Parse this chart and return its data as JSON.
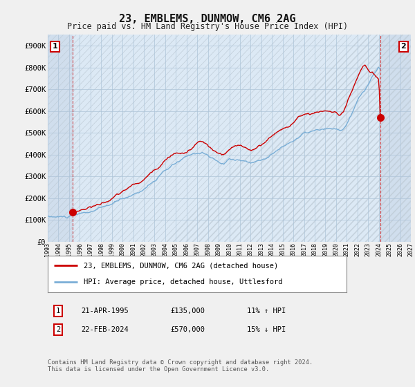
{
  "title": "23, EMBLEMS, DUNMOW, CM6 2AG",
  "subtitle": "Price paid vs. HM Land Registry's House Price Index (HPI)",
  "xlim_start": 1993.0,
  "xlim_end": 2027.0,
  "ylim": [
    0,
    950000
  ],
  "yticks": [
    0,
    100000,
    200000,
    300000,
    400000,
    500000,
    600000,
    700000,
    800000,
    900000
  ],
  "ytick_labels": [
    "£0",
    "£100K",
    "£200K",
    "£300K",
    "£400K",
    "£500K",
    "£600K",
    "£700K",
    "£800K",
    "£900K"
  ],
  "xtick_years": [
    1993,
    1994,
    1995,
    1996,
    1997,
    1998,
    1999,
    2000,
    2001,
    2002,
    2003,
    2004,
    2005,
    2006,
    2007,
    2008,
    2009,
    2010,
    2011,
    2012,
    2013,
    2014,
    2015,
    2016,
    2017,
    2018,
    2019,
    2020,
    2021,
    2022,
    2023,
    2024,
    2025,
    2026,
    2027
  ],
  "background_color": "#f0f0f0",
  "plot_bg_color": "#dce9f5",
  "hatch_color": "#c0cdd8",
  "grid_color": "#aec4d8",
  "red_color": "#cc0000",
  "blue_color": "#7aaed6",
  "t1_year": 1995.3,
  "t1_price": 135000,
  "t2_year": 2024.13,
  "t2_price": 570000,
  "legend_line1": "23, EMBLEMS, DUNMOW, CM6 2AG (detached house)",
  "legend_line2": "HPI: Average price, detached house, Uttlesford",
  "table_row1": [
    "1",
    "21-APR-1995",
    "£135,000",
    "11% ↑ HPI"
  ],
  "table_row2": [
    "2",
    "22-FEB-2024",
    "£570,000",
    "15% ↓ HPI"
  ],
  "footer": "Contains HM Land Registry data © Crown copyright and database right 2024.\nThis data is licensed under the Open Government Licence v3.0."
}
